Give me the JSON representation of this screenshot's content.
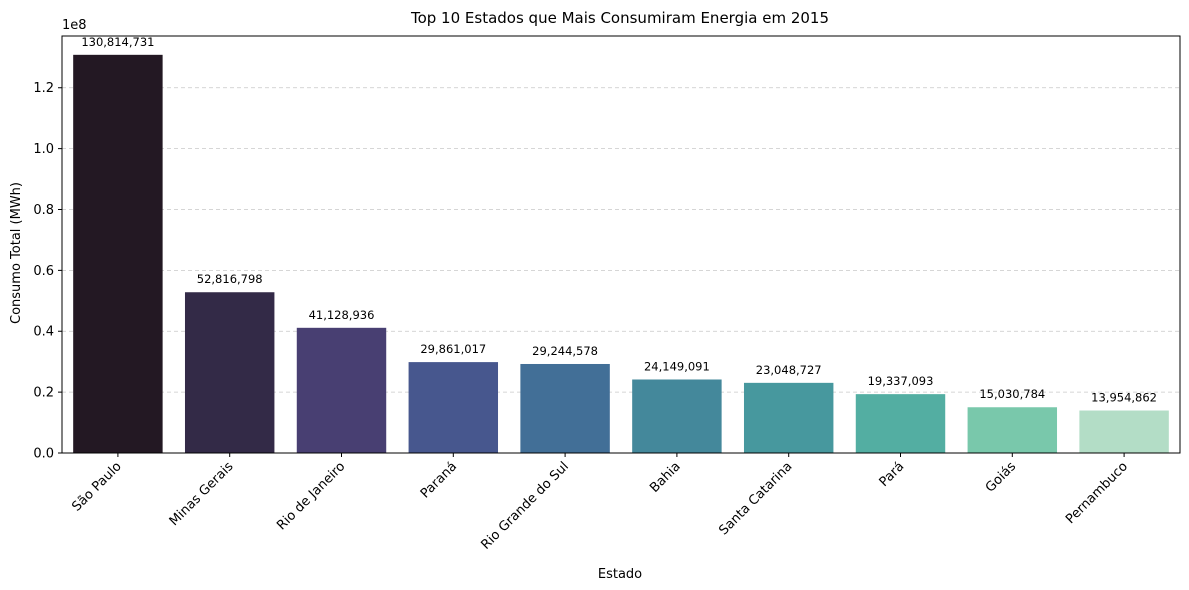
{
  "chart_data": {
    "type": "bar",
    "title": "Top 10 Estados que Mais Consumiram Energia em 2015",
    "xlabel": "Estado",
    "ylabel": "Consumo Total (MWh)",
    "y_offset_label": "1e8",
    "ylim": [
      0,
      137000000
    ],
    "yticks": [
      0,
      20000000,
      40000000,
      60000000,
      80000000,
      100000000,
      120000000
    ],
    "ytick_labels": [
      "0.0",
      "0.2",
      "0.4",
      "0.6",
      "0.8",
      "1.0",
      "1.2"
    ],
    "grid": "y dashed",
    "categories": [
      "São Paulo",
      "Minas Gerais",
      "Rio de Janeiro",
      "Paraná",
      "Rio Grande do Sul",
      "Bahia",
      "Santa Catarina",
      "Pará",
      "Goiás",
      "Pernambuco"
    ],
    "values": [
      130814731,
      52816798,
      41128936,
      29861017,
      29244578,
      24149091,
      23048727,
      19337093,
      15030784,
      13954862
    ],
    "value_labels": [
      "130,814,731",
      "52,816,798",
      "41,128,936",
      "29,861,017",
      "29,244,578",
      "24,149,091",
      "23,048,727",
      "19,337,093",
      "15,030,784",
      "13,954,862"
    ],
    "colors": [
      "#231823",
      "#332a47",
      "#483f72",
      "#47578e",
      "#426f97",
      "#44889b",
      "#47989e",
      "#53aea2",
      "#79c8ab",
      "#b3ddc6"
    ]
  }
}
